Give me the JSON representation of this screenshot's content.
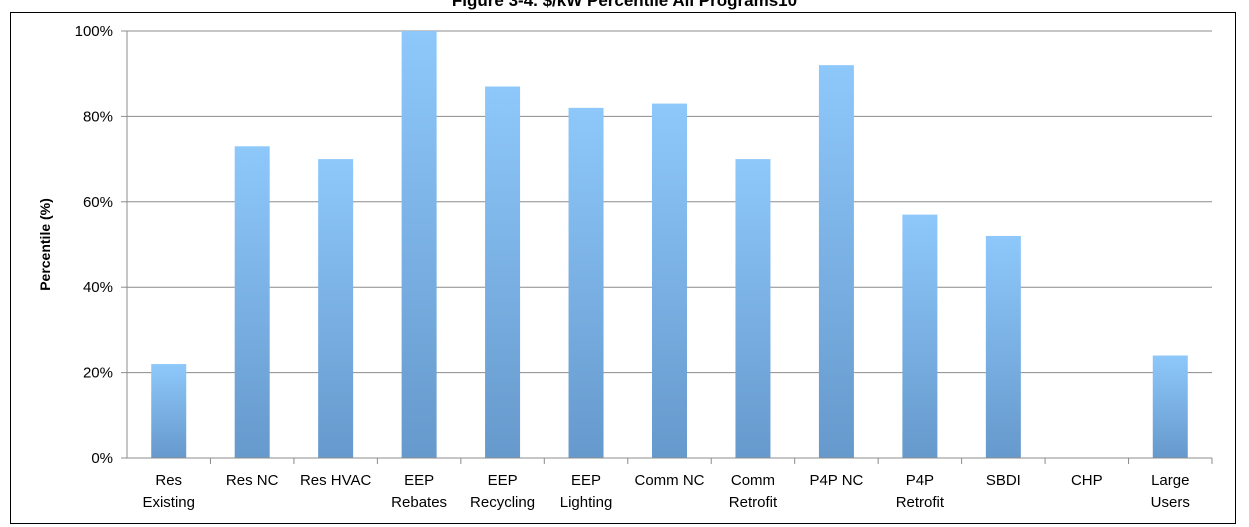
{
  "chart_data": {
    "type": "bar",
    "title": "Figure 3-4. $/kW Percentile All Programs10",
    "xlabel": "",
    "ylabel": "Percentile (%)",
    "ylim": [
      0,
      100
    ],
    "yticks": [
      "0%",
      "20%",
      "40%",
      "60%",
      "80%",
      "100%"
    ],
    "grid": true,
    "categories": [
      [
        "Res",
        "Existing"
      ],
      [
        "Res NC"
      ],
      [
        "Res HVAC"
      ],
      [
        "EEP",
        "Rebates"
      ],
      [
        "EEP",
        "Recycling"
      ],
      [
        "EEP",
        "Lighting"
      ],
      [
        "Comm NC"
      ],
      [
        "Comm",
        "Retrofit"
      ],
      [
        "P4P NC"
      ],
      [
        "P4P",
        "Retrofit"
      ],
      [
        "SBDI"
      ],
      [
        "CHP"
      ],
      [
        "Large",
        "Users"
      ]
    ],
    "values": [
      22,
      73,
      70,
      100,
      87,
      82,
      83,
      70,
      92,
      57,
      52,
      0,
      24
    ],
    "bar_color_top": "#8ec8fb",
    "bar_color_bottom": "#6699cc"
  }
}
